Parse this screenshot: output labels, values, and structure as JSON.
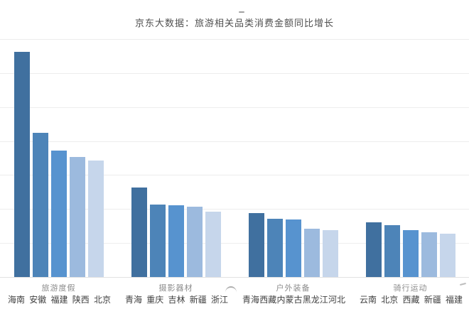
{
  "page": {
    "background_color": "#ffffff",
    "title_color": "#4f4f4f",
    "decorations": {
      "dash_above_title": "small gray dash",
      "arc_mark_near_axis": "small gray arc",
      "tick_mark_bottom_right": "small gray tick"
    }
  },
  "chart_data": {
    "type": "bar",
    "title": "京东大数据：旅游相关品类消费金额同比增长",
    "xlabel": "",
    "ylabel": "",
    "legend": "none",
    "grid": "horizontal gridlines on, 8 lines",
    "y_axis": {
      "tick_labels_visible": false,
      "ylim_units": [
        0,
        7
      ],
      "note": "no numeric axis labels shown; bar values estimated in gridline units (1 unit = one gridline interval)"
    },
    "categories": [
      "旅游度假",
      "摄影器材",
      "户外装备",
      "骑行运动"
    ],
    "groups": [
      {
        "category": "旅游度假",
        "bars": [
          {
            "label": "海南",
            "value": 6.62
          },
          {
            "label": "安徽",
            "value": 4.24
          },
          {
            "label": "福建",
            "value": 3.72
          },
          {
            "label": "陕西",
            "value": 3.53
          },
          {
            "label": "北京",
            "value": 3.42
          }
        ]
      },
      {
        "category": "摄影器材",
        "bars": [
          {
            "label": "青海",
            "value": 2.63
          },
          {
            "label": "重庆",
            "value": 2.13
          },
          {
            "label": "吉林",
            "value": 2.12
          },
          {
            "label": "新疆",
            "value": 2.06
          },
          {
            "label": "浙江",
            "value": 1.93
          }
        ]
      },
      {
        "category": "户外装备",
        "bars": [
          {
            "label": "青海",
            "value": 1.88
          },
          {
            "label": "西藏",
            "value": 1.72
          },
          {
            "label": "内蒙古",
            "value": 1.69
          },
          {
            "label": "黑龙江",
            "value": 1.43
          },
          {
            "label": "河北",
            "value": 1.39
          }
        ]
      },
      {
        "category": "骑行运动",
        "bars": [
          {
            "label": "云南",
            "value": 1.6
          },
          {
            "label": "北京",
            "value": 1.52
          },
          {
            "label": "西藏",
            "value": 1.39
          },
          {
            "label": "新疆",
            "value": 1.31
          },
          {
            "label": "福建",
            "value": 1.27
          }
        ]
      }
    ],
    "bar_colors": [
      "#40709f",
      "#4d84b8",
      "#5793cf",
      "#9cbade",
      "#c6d6eb"
    ],
    "gridline_color": "#ededed",
    "baseline_color": "#e2e2e2",
    "category_label_color": "#8c8c8c",
    "bar_label_color": "#3f3f3f"
  }
}
